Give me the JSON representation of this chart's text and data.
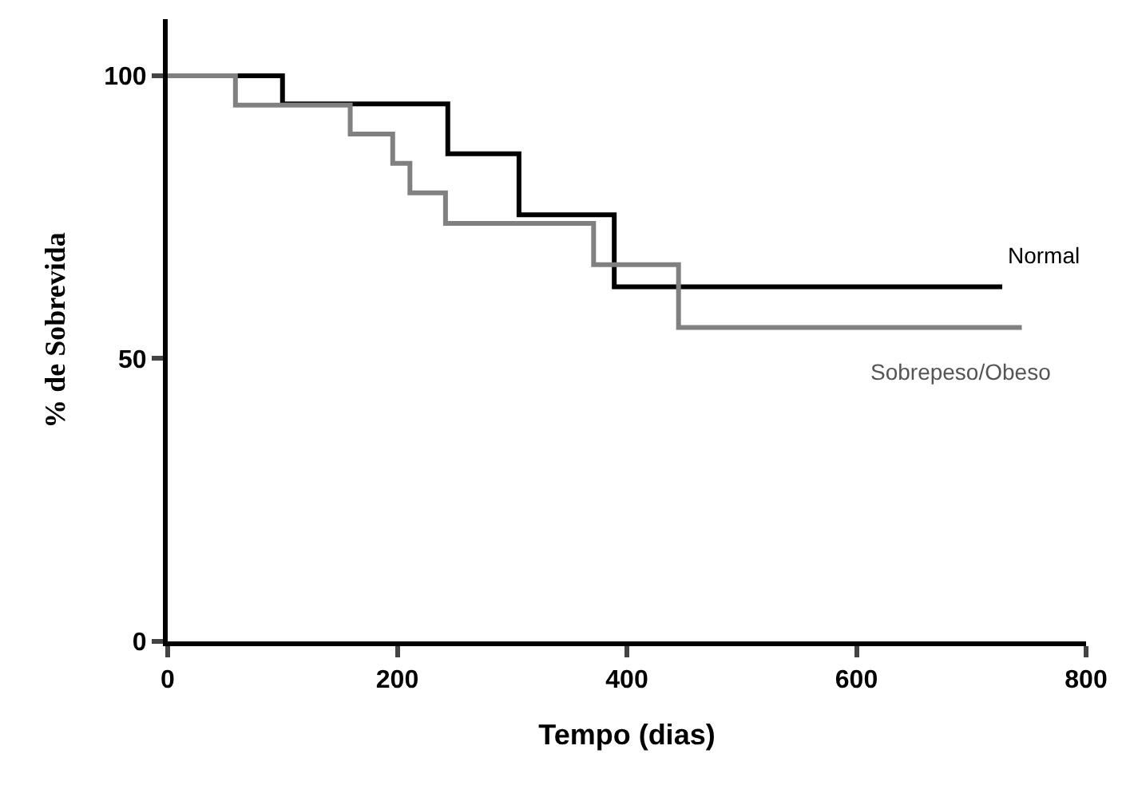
{
  "chart_data": {
    "type": "step",
    "xlabel": "Tempo (dias)",
    "ylabel": "% de Sobrevida",
    "xlim": [
      0,
      800
    ],
    "xticks": [
      0,
      200,
      400,
      600,
      800
    ],
    "ylim": [
      0,
      110
    ],
    "yticks": [
      0,
      50,
      100
    ],
    "legend": false,
    "series": [
      {
        "name": "Normal",
        "color": "#000000",
        "x": [
          0,
          100,
          244,
          306,
          389,
          727
        ],
        "values": [
          100,
          95.0,
          86.2,
          75.4,
          62.7,
          62.7
        ]
      },
      {
        "name": "Sobrepeso/Obeso",
        "color": "#808080",
        "x": [
          0,
          59,
          159,
          196,
          211,
          242,
          371,
          445,
          744
        ],
        "values": [
          100,
          94.8,
          89.7,
          84.5,
          79.3,
          73.9,
          66.6,
          55.5,
          55.5
        ]
      }
    ]
  }
}
